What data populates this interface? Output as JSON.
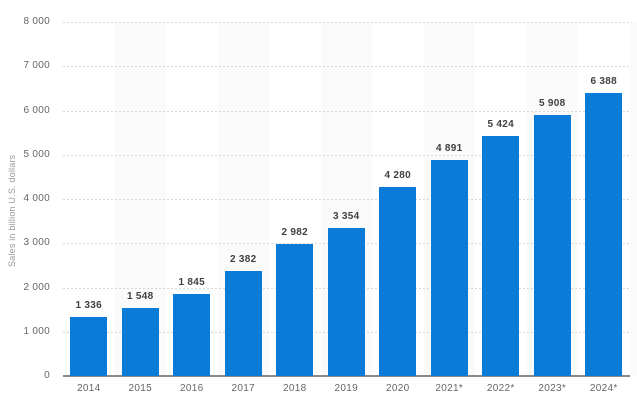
{
  "chart_data": {
    "type": "bar",
    "title": "",
    "xlabel": "",
    "ylabel": "Sales in billion U.S. dollars",
    "categories": [
      "2014",
      "2015",
      "2016",
      "2017",
      "2018",
      "2019",
      "2020",
      "2021*",
      "2022*",
      "2023*",
      "2024*"
    ],
    "values": [
      1336,
      1548,
      1845,
      2382,
      2982,
      3354,
      4280,
      4891,
      5424,
      5908,
      6388
    ],
    "value_labels": [
      "1 336",
      "1 548",
      "1 845",
      "2 382",
      "2 982",
      "3 354",
      "4 280",
      "4 891",
      "5 424",
      "5 908",
      "6 388"
    ],
    "ylim": [
      0,
      8000
    ],
    "ytick_interval": 1000,
    "ytick_labels": [
      "0",
      "1 000",
      "2 000",
      "3 000",
      "4 000",
      "5 000",
      "6 000",
      "7 000",
      "8 000"
    ],
    "grid": "horizontal-dotted",
    "legend": "none",
    "layout_hints": {
      "striped_background": "alternating light vertical bands behind every second category column",
      "value_labels_position": "above bars"
    },
    "colors": {
      "bar": "#0a7cd8",
      "stripe": "#fafafa",
      "gridline": "#d8d8d8",
      "axis_line": "#8a8a8a",
      "value_label": "#404040",
      "tick_label": "#666666",
      "axis_title": "#999999",
      "background": "#ffffff"
    }
  }
}
